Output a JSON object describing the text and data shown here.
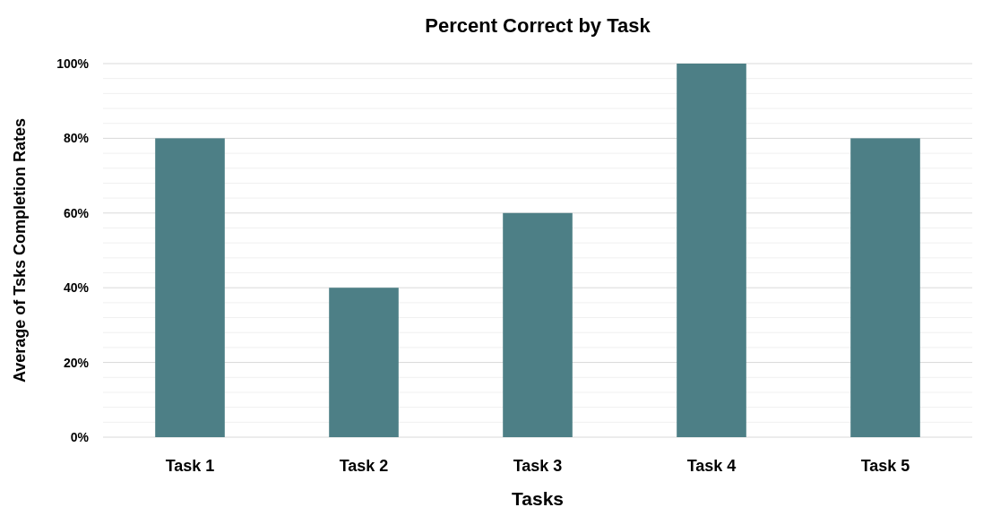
{
  "chart_data": {
    "type": "bar",
    "title": "Percent Correct by Task",
    "xlabel": "Tasks",
    "ylabel": "Average of Tsks Completion Rates",
    "categories": [
      "Task 1",
      "Task 2",
      "Task 3",
      "Task 4",
      "Task 5"
    ],
    "values": [
      80,
      40,
      60,
      100,
      80
    ],
    "color": "#4d7f86",
    "ylim": [
      0,
      100
    ],
    "yticks": [
      {
        "value": 0,
        "label": "0%"
      },
      {
        "value": 4,
        "label": null
      },
      {
        "value": 8,
        "label": null
      },
      {
        "value": 12,
        "label": null
      },
      {
        "value": 16,
        "label": null
      },
      {
        "value": 20,
        "label": "20%"
      },
      {
        "value": 24,
        "label": null
      },
      {
        "value": 28,
        "label": null
      },
      {
        "value": 32,
        "label": null
      },
      {
        "value": 36,
        "label": null
      },
      {
        "value": 40,
        "label": "40%"
      },
      {
        "value": 44,
        "label": null
      },
      {
        "value": 48,
        "label": null
      },
      {
        "value": 52,
        "label": null
      },
      {
        "value": 56,
        "label": null
      },
      {
        "value": 60,
        "label": "60%"
      },
      {
        "value": 64,
        "label": null
      },
      {
        "value": 68,
        "label": null
      },
      {
        "value": 72,
        "label": null
      },
      {
        "value": 76,
        "label": null
      },
      {
        "value": 80,
        "label": "80%"
      },
      {
        "value": 84,
        "label": null
      },
      {
        "value": 88,
        "label": null
      },
      {
        "value": 92,
        "label": null
      },
      {
        "value": 96,
        "label": null
      },
      {
        "value": 100,
        "label": "100%"
      }
    ],
    "grid": true
  }
}
